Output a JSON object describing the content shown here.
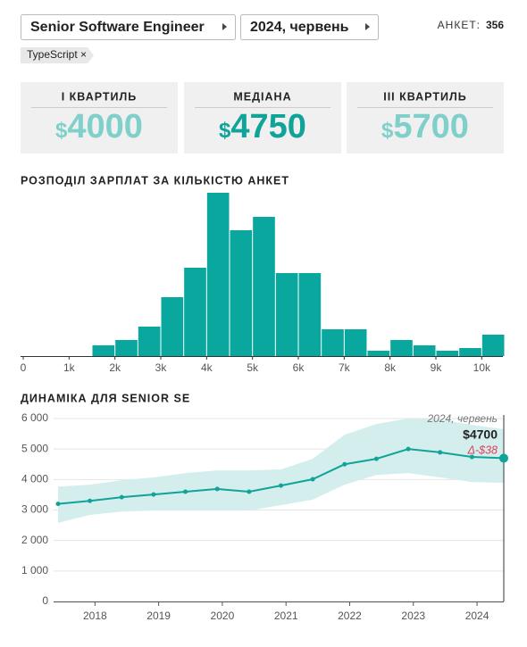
{
  "header": {
    "position": "Senior Software Engineer",
    "period": "2024, червень",
    "count_label": "АНКЕТ:",
    "count": 356,
    "filters": [
      "TypeScript ×"
    ]
  },
  "cards": [
    {
      "label": "І КВАРТИЛЬ",
      "currency": "$",
      "value": 4000,
      "color": "#7fd0ca"
    },
    {
      "label": "МЕДІАНА",
      "currency": "$",
      "value": 4750,
      "color": "#0fa39a"
    },
    {
      "label": "ІІІ КВАРТИЛЬ",
      "currency": "$",
      "value": 5700,
      "color": "#7fd0ca"
    }
  ],
  "chart_data": [
    {
      "type": "histogram",
      "title": "РОЗПОДІЛ ЗАРПЛАТ ЗА КІЛЬКІСТЮ АНКЕТ",
      "bins": [
        1500,
        2000,
        2500,
        3000,
        3500,
        4000,
        4500,
        5000,
        5500,
        6000,
        6500,
        7000,
        7500,
        8000,
        8500,
        9000,
        9500,
        10000,
        10500
      ],
      "values": [
        4,
        6,
        11,
        22,
        33,
        61,
        47,
        52,
        31,
        31,
        10,
        10,
        2,
        6,
        4,
        2,
        3,
        8
      ],
      "color": "#0aa79e",
      "xlim": [
        0,
        10500
      ],
      "xticks": [
        0,
        {
          "value": 1000,
          "label": "1k"
        },
        {
          "value": 2000,
          "label": "2k"
        },
        {
          "value": 3000,
          "label": "3k"
        },
        {
          "value": 4000,
          "label": "4k"
        },
        {
          "value": 5000,
          "label": "5k"
        },
        {
          "value": 6000,
          "label": "6k"
        },
        {
          "value": 7000,
          "label": "7k"
        },
        {
          "value": 8000,
          "label": "8k"
        },
        {
          "value": 9000,
          "label": "9k"
        },
        {
          "value": 10000,
          "label": "10k"
        }
      ]
    },
    {
      "type": "line",
      "title": "ДИНАМІКА ДЛЯ SENIOR SE",
      "x": [
        2017.42,
        2017.92,
        2018.42,
        2018.92,
        2019.42,
        2019.92,
        2020.42,
        2020.92,
        2021.42,
        2021.92,
        2022.42,
        2022.92,
        2023.42,
        2023.92,
        2024.42
      ],
      "values": [
        3200,
        3300,
        3420,
        3510,
        3600,
        3690,
        3600,
        3800,
        4010,
        4500,
        4680,
        5000,
        4890,
        4740,
        4700
      ],
      "value_labels": [
        null,
        null,
        null,
        null,
        null,
        null,
        null,
        null,
        null,
        null,
        null,
        null,
        null,
        null,
        "$4700"
      ],
      "lower": [
        2580,
        2840,
        2950,
        2980,
        2980,
        2980,
        2980,
        3160,
        3340,
        3830,
        4150,
        4210,
        4070,
        3920,
        3890
      ],
      "upper": [
        3770,
        3830,
        3980,
        4070,
        4210,
        4300,
        4300,
        4330,
        4680,
        5470,
        5820,
        6000,
        5970,
        5790,
        5650
      ],
      "color": "#0fa39a",
      "band_color": "#d3eeec",
      "xlim": [
        2017.35,
        2024.42
      ],
      "xticks": [
        2018,
        2019,
        2020,
        2021,
        2022,
        2023,
        2024
      ],
      "ylim": [
        0,
        6000
      ],
      "yticks": [
        0,
        {
          "value": 1000,
          "label": "1 000"
        },
        {
          "value": 2000,
          "label": "2 000"
        },
        {
          "value": 3000,
          "label": "3 000"
        },
        {
          "value": 4000,
          "label": "4 000"
        },
        {
          "value": 5000,
          "label": "5 000"
        },
        {
          "value": 6000,
          "label": "6 000"
        }
      ],
      "grid": true,
      "annotation": {
        "date": "2024, червень",
        "change": "Δ-$38",
        "change_color": "#e0405a"
      }
    }
  ]
}
